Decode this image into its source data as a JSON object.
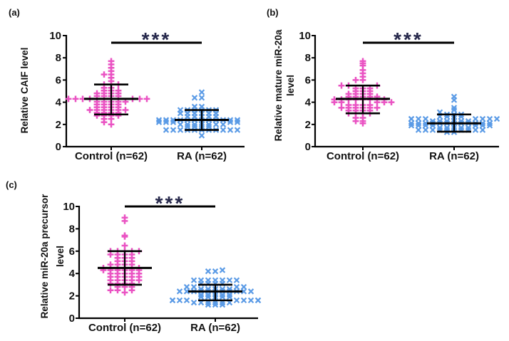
{
  "figure": {
    "background": "#FFFFFF",
    "axis_color": "#000000",
    "significance_color": "#26284B"
  },
  "chart_data": [
    {
      "type": "scatter",
      "panel_label": "(a)",
      "ylabel": "Relative CAIF level",
      "ylabel_lines": [
        "Relative CAIF level"
      ],
      "ylim": [
        0,
        10
      ],
      "yticks": [
        0,
        2,
        4,
        6,
        8,
        10
      ],
      "significance": "***",
      "categories": [
        "Control (n=62)",
        "RA (n=62)"
      ],
      "groups": [
        {
          "label": "Control (n=62)",
          "n": 62,
          "marker": "plus",
          "color": "#EA53C3",
          "mean": 4.3,
          "sd_low": 2.9,
          "sd_high": 5.6,
          "values": [
            2.0,
            2.2,
            2.5,
            2.5,
            2.8,
            2.8,
            2.8,
            2.8,
            3.05,
            3.05,
            3.05,
            3.05,
            3.3,
            3.3,
            3.3,
            3.3,
            3.3,
            3.3,
            3.55,
            3.55,
            3.55,
            3.55,
            3.8,
            3.8,
            3.8,
            3.8,
            4.05,
            4.05,
            4.05,
            4.05,
            4.05,
            4.3,
            4.3,
            4.3,
            4.3,
            4.3,
            4.3,
            4.3,
            4.55,
            4.55,
            4.55,
            4.55,
            4.8,
            4.8,
            4.8,
            4.8,
            5.05,
            5.05,
            5.05,
            5.3,
            5.3,
            5.6,
            5.6,
            5.6,
            5.9,
            6.2,
            6.5,
            6.5,
            6.8,
            7.1,
            7.4,
            7.7
          ]
        },
        {
          "label": "RA (n=62)",
          "n": 62,
          "marker": "x",
          "color": "#5B9BE6",
          "mean": 2.4,
          "sd_low": 1.5,
          "sd_high": 3.3,
          "values": [
            1.0,
            1.5,
            1.5,
            1.5,
            1.5,
            1.5,
            1.5,
            1.5,
            1.5,
            1.5,
            1.5,
            1.5,
            1.8,
            1.8,
            1.8,
            1.8,
            2.0,
            2.0,
            2.0,
            2.0,
            2.0,
            2.0,
            2.0,
            2.2,
            2.2,
            2.2,
            2.2,
            2.2,
            2.4,
            2.4,
            2.4,
            2.4,
            2.4,
            2.4,
            2.4,
            2.4,
            2.4,
            2.4,
            2.4,
            2.4,
            2.7,
            2.7,
            2.7,
            2.7,
            2.7,
            3.0,
            3.0,
            3.0,
            3.0,
            3.0,
            3.0,
            3.3,
            3.3,
            3.3,
            3.3,
            3.3,
            3.3,
            3.6,
            3.6,
            4.4,
            4.4,
            4.9
          ]
        }
      ]
    },
    {
      "type": "scatter",
      "panel_label": "(b)",
      "ylabel": "Relative mature miR-20a level",
      "ylabel_lines": [
        "Relative mature miR-20a",
        "level"
      ],
      "ylim": [
        0,
        10
      ],
      "yticks": [
        0,
        2,
        4,
        6,
        8,
        10
      ],
      "significance": "***",
      "categories": [
        "Control (n=62)",
        "RA (n=62)"
      ],
      "groups": [
        {
          "label": "Control (n=62)",
          "n": 62,
          "marker": "plus",
          "color": "#EA53C3",
          "mean": 4.3,
          "sd_low": 3.0,
          "sd_high": 5.5,
          "values": [
            2.1,
            2.3,
            2.3,
            2.6,
            2.6,
            3.0,
            3.0,
            3.0,
            3.0,
            3.25,
            3.25,
            3.25,
            3.25,
            3.5,
            3.5,
            3.5,
            3.5,
            3.5,
            3.5,
            3.75,
            3.75,
            3.75,
            3.75,
            4.0,
            4.0,
            4.0,
            4.0,
            4.0,
            4.25,
            4.25,
            4.25,
            4.25,
            4.25,
            4.25,
            4.25,
            4.25,
            4.5,
            4.5,
            4.5,
            4.5,
            4.5,
            4.75,
            4.75,
            4.75,
            4.75,
            5.0,
            5.0,
            5.0,
            5.25,
            5.25,
            5.25,
            5.5,
            5.5,
            5.5,
            6.0,
            6.0,
            6.3,
            6.6,
            6.9,
            7.3,
            7.5,
            7.7
          ]
        },
        {
          "label": "RA (n=62)",
          "n": 62,
          "marker": "x",
          "color": "#5B9BE6",
          "mean": 2.1,
          "sd_low": 1.35,
          "sd_high": 2.9,
          "values": [
            1.3,
            1.3,
            1.5,
            1.5,
            1.5,
            1.5,
            1.5,
            1.5,
            1.5,
            1.5,
            1.5,
            1.5,
            1.7,
            1.7,
            1.7,
            1.7,
            1.7,
            1.9,
            1.9,
            1.9,
            1.9,
            1.9,
            1.9,
            1.9,
            2.1,
            2.1,
            2.1,
            2.1,
            2.1,
            2.1,
            2.1,
            2.1,
            2.1,
            2.1,
            2.1,
            2.1,
            2.3,
            2.3,
            2.3,
            2.3,
            2.3,
            2.3,
            2.5,
            2.5,
            2.5,
            2.5,
            2.5,
            2.5,
            2.5,
            2.5,
            2.7,
            2.7,
            2.7,
            2.7,
            2.9,
            2.9,
            2.9,
            3.1,
            3.3,
            3.5,
            4.2,
            4.5
          ]
        }
      ]
    },
    {
      "type": "scatter",
      "panel_label": "(c)",
      "ylabel": "Relative miR-20a precursor level",
      "ylabel_lines": [
        "Relative miR-20a precursor",
        "level"
      ],
      "ylim": [
        0,
        10
      ],
      "yticks": [
        0,
        2,
        4,
        6,
        8,
        10
      ],
      "significance": "***",
      "categories": [
        "Control (n=62)",
        "RA (n=62)"
      ],
      "groups": [
        {
          "label": "Control (n=62)",
          "n": 62,
          "marker": "plus",
          "color": "#EA53C3",
          "mean": 4.5,
          "sd_low": 3.0,
          "sd_high": 6.0,
          "values": [
            2.3,
            2.5,
            2.5,
            2.5,
            2.8,
            2.8,
            2.8,
            3.1,
            3.1,
            3.1,
            3.1,
            3.4,
            3.4,
            3.4,
            3.4,
            3.4,
            3.7,
            3.7,
            3.7,
            3.7,
            3.7,
            4.0,
            4.0,
            4.0,
            4.0,
            4.0,
            4.3,
            4.3,
            4.3,
            4.3,
            4.3,
            4.3,
            4.5,
            4.5,
            4.5,
            4.5,
            4.5,
            4.5,
            4.8,
            4.8,
            4.8,
            4.8,
            5.1,
            5.1,
            5.1,
            5.4,
            5.4,
            5.4,
            5.7,
            5.7,
            5.7,
            5.7,
            6.0,
            6.0,
            6.0,
            6.0,
            6.0,
            6.5,
            7.3,
            7.4,
            8.7,
            9.0
          ]
        },
        {
          "label": "RA (n=62)",
          "n": 62,
          "marker": "x",
          "color": "#5B9BE6",
          "mean": 2.4,
          "sd_low": 1.6,
          "sd_high": 3.0,
          "values": [
            1.2,
            1.2,
            1.2,
            1.4,
            1.4,
            1.4,
            1.4,
            1.4,
            1.4,
            1.6,
            1.6,
            1.6,
            1.6,
            1.6,
            1.6,
            1.6,
            1.6,
            1.6,
            1.9,
            1.9,
            1.9,
            1.9,
            1.9,
            2.1,
            2.1,
            2.1,
            2.1,
            2.1,
            2.4,
            2.4,
            2.4,
            2.4,
            2.4,
            2.4,
            2.4,
            2.4,
            2.4,
            2.4,
            2.4,
            2.6,
            2.6,
            2.6,
            2.6,
            2.6,
            2.8,
            2.8,
            2.8,
            2.8,
            3.1,
            3.1,
            3.1,
            3.1,
            3.4,
            3.4,
            3.4,
            3.4,
            3.4,
            3.4,
            3.4,
            4.2,
            4.2,
            4.3
          ]
        }
      ]
    }
  ]
}
